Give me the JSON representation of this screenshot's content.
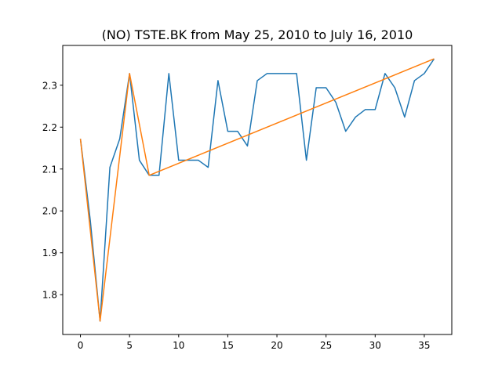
{
  "chart_data": {
    "type": "line",
    "title": "(NO) TSTE.BK from May 25, 2010 to July 16, 2010",
    "xlabel": "",
    "ylabel": "",
    "xlim": [
      -1.8,
      37.8
    ],
    "ylim": [
      1.705,
      2.395
    ],
    "xticks": [
      0,
      5,
      10,
      15,
      20,
      25,
      30,
      35
    ],
    "yticks": [
      1.8,
      1.9,
      2.0,
      2.1,
      2.2,
      2.3
    ],
    "ytick_labels": [
      "1.8",
      "1.9",
      "2.0",
      "2.1",
      "2.2",
      "2.3"
    ],
    "grid": false,
    "legend": null,
    "series": [
      {
        "color": "#1f77b4",
        "x": [
          0,
          1,
          2,
          3,
          4,
          5,
          6,
          7,
          8,
          9,
          10,
          11,
          12,
          13,
          14,
          15,
          16,
          17,
          18,
          19,
          20,
          21,
          22,
          23,
          24,
          25,
          26,
          27,
          28,
          29,
          30,
          31,
          32,
          33,
          34,
          35,
          36
        ],
        "y": [
          2.172,
          1.978,
          1.737,
          2.104,
          2.172,
          2.328,
          2.121,
          2.085,
          2.085,
          2.328,
          2.121,
          2.121,
          2.121,
          2.104,
          2.311,
          2.19,
          2.19,
          2.155,
          2.311,
          2.328,
          2.328,
          2.328,
          2.328,
          2.121,
          2.294,
          2.294,
          2.259,
          2.19,
          2.224,
          2.242,
          2.242,
          2.328,
          2.294,
          2.224,
          2.311,
          2.328,
          2.363
        ]
      },
      {
        "color": "#ff7f0e",
        "x": [
          0,
          2,
          5,
          7,
          36
        ],
        "y": [
          2.172,
          1.737,
          2.328,
          2.085,
          2.363
        ]
      }
    ]
  }
}
